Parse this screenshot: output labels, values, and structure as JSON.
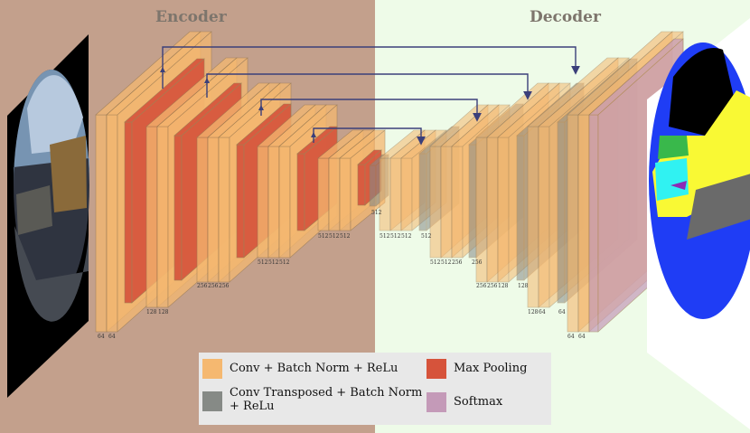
{
  "titles": {
    "encoder": "Encoder",
    "decoder": "Decoder"
  },
  "colors": {
    "encoder_bg": "#c3a08c",
    "decoder_bg": "#eefbe8",
    "conv": "#f5b870",
    "maxpool": "#d6533b",
    "convtranspose": "#868a86",
    "softmax": "#c49ab8",
    "arrow": "#3b3f7a"
  },
  "blocks": {
    "enc1": [
      "64",
      "64"
    ],
    "enc2": [
      "128",
      "128"
    ],
    "enc3": [
      "256",
      "256",
      "256"
    ],
    "enc4": [
      "512",
      "512",
      "512"
    ],
    "enc5": [
      "512",
      "512",
      "512"
    ],
    "bottleneck": [
      "512"
    ],
    "dec1": [
      "512",
      "512",
      "512"
    ],
    "dec1_t": "512",
    "dec2": [
      "512",
      "512",
      "256"
    ],
    "dec2_t": "256",
    "dec3": [
      "256",
      "256",
      "128"
    ],
    "dec3_t": "128",
    "dec4": [
      "128",
      "64"
    ],
    "dec4_t": "64",
    "dec5": [
      "64",
      "64"
    ]
  },
  "legend": {
    "conv": "Conv + Batch Norm + ReLu",
    "convtranspose": "Conv Transposed + Batch Norm + ReLu",
    "maxpool": "Max Pooling",
    "softmax": "Softmax"
  }
}
